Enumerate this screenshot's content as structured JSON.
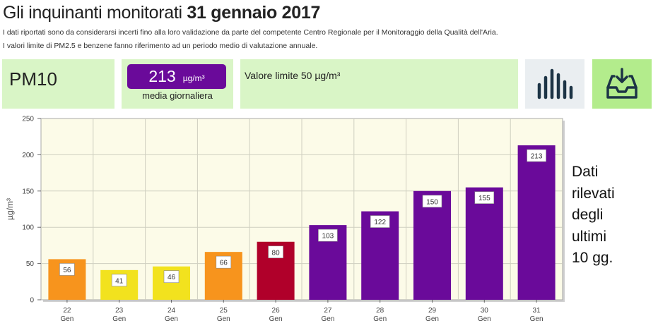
{
  "header": {
    "title_prefix": "Gli inquinanti monitorati",
    "title_date": "31 gennaio 2017",
    "note_1": "I dati riportati sono da considerarsi incerti fino alla loro validazione da parte del competente Centro Regionale per il Monitoraggio della Qualità dell'Aria.",
    "note_2": "I valori limite di PM2.5 e benzene fanno riferimento ad un periodo medio di valutazione annuale."
  },
  "pollutant": {
    "name": "PM10",
    "value": "213",
    "unit": "µg/m³",
    "value_caption": "media giornaliera",
    "limit_text": "Valore limite 50 µg/m³"
  },
  "icons": {
    "chart_button": "bar-chart-icon",
    "download_button": "download-tray-icon"
  },
  "side_caption": [
    "Dati",
    "rilevati",
    "degli",
    "ultimi",
    "10 gg."
  ],
  "colors": {
    "panel_green": "#d9f5c6",
    "pill_purple": "#6a0a9a",
    "orange": "#f7941d",
    "yellow": "#f2e21e",
    "red": "#b0002a",
    "purple": "#6a0a9a"
  },
  "chart_data": {
    "type": "bar",
    "ylabel": "µg/m³",
    "ylim": [
      0,
      250
    ],
    "yticks": [
      0,
      50,
      100,
      150,
      200,
      250
    ],
    "grid": true,
    "categories": [
      {
        "day": "22",
        "month": "Gen"
      },
      {
        "day": "23",
        "month": "Gen"
      },
      {
        "day": "24",
        "month": "Gen"
      },
      {
        "day": "25",
        "month": "Gen"
      },
      {
        "day": "26",
        "month": "Gen"
      },
      {
        "day": "27",
        "month": "Gen"
      },
      {
        "day": "28",
        "month": "Gen"
      },
      {
        "day": "29",
        "month": "Gen"
      },
      {
        "day": "30",
        "month": "Gen"
      },
      {
        "day": "31",
        "month": "Gen"
      }
    ],
    "values": [
      56,
      41,
      46,
      66,
      80,
      103,
      122,
      150,
      155,
      213
    ],
    "bar_colors": [
      "#f7941d",
      "#f2e21e",
      "#f2e21e",
      "#f7941d",
      "#b0002a",
      "#6a0a9a",
      "#6a0a9a",
      "#6a0a9a",
      "#6a0a9a",
      "#6a0a9a"
    ]
  }
}
